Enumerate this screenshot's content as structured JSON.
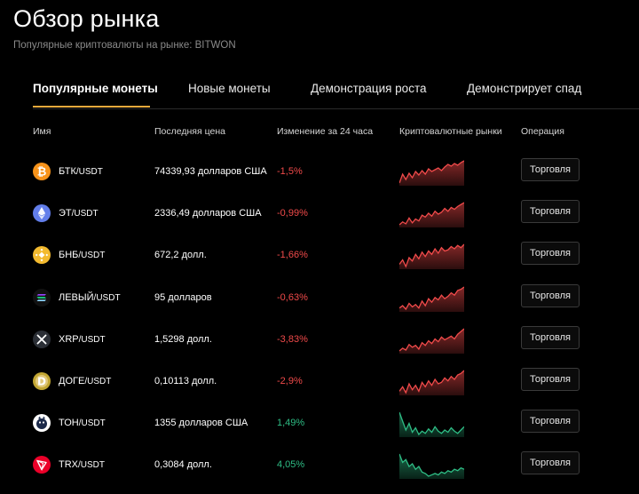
{
  "header": {
    "title": "Обзор рынка",
    "subtitle": "Популярные криптовалюты на рынке: BITWON"
  },
  "tabs": [
    {
      "label": "Популярные монеты",
      "active": true
    },
    {
      "label": "Новые монеты",
      "active": false
    },
    {
      "label": "Демонстрация роста",
      "active": false
    },
    {
      "label": "Демонстрирует спад",
      "active": false
    }
  ],
  "columns": {
    "name": "Имя",
    "price": "Последняя цена",
    "change": "Изменение за 24 часа",
    "chart": "Криптовалютные рынки",
    "action": "Операция"
  },
  "colors": {
    "accent": "#e8a93c",
    "negative": "#f04a4a",
    "positive": "#2ebd85"
  },
  "rows": [
    {
      "icon": "bitcoin-icon",
      "base": "БТК",
      "quote": "/USDT",
      "price": "74339,93 долларов США",
      "change": "-1,5%",
      "trend": "neg",
      "button": "Торговля",
      "spark": [
        20,
        30,
        24,
        31,
        26,
        33,
        29,
        34,
        30,
        36,
        33,
        35,
        37,
        34,
        38,
        41,
        39,
        42,
        40,
        43,
        45
      ]
    },
    {
      "icon": "ethereum-icon",
      "base": "ЭТ",
      "quote": "/USDT",
      "price": "2336,49 долларов США",
      "change": "-0,99%",
      "trend": "neg",
      "button": "Торговля",
      "spark": [
        21,
        24,
        22,
        28,
        23,
        27,
        25,
        31,
        29,
        33,
        30,
        35,
        32,
        34,
        38,
        35,
        39,
        37,
        40,
        42,
        44
      ]
    },
    {
      "icon": "bnb-icon",
      "base": "БНБ",
      "quote": "/USDT",
      "price": "672,2 долл.",
      "change": "-1,66%",
      "trend": "neg",
      "button": "Торговля",
      "spark": [
        24,
        28,
        22,
        30,
        27,
        33,
        29,
        35,
        31,
        36,
        33,
        38,
        34,
        39,
        36,
        37,
        40,
        38,
        41,
        39,
        42
      ]
    },
    {
      "icon": "solana-icon",
      "base": "ЛЕВЫЙ",
      "quote": "/USDT",
      "price": "95 долларов",
      "change": "-0,63%",
      "trend": "neg",
      "button": "Торговля",
      "spark": [
        22,
        24,
        21,
        26,
        23,
        25,
        22,
        28,
        24,
        30,
        27,
        31,
        29,
        33,
        30,
        32,
        35,
        33,
        37,
        38,
        40
      ]
    },
    {
      "icon": "xrp-icon",
      "base": "XRP",
      "quote": "/USDT",
      "price": "1,5298 долл.",
      "change": "-3,83%",
      "trend": "neg",
      "button": "Торговля",
      "spark": [
        20,
        23,
        21,
        27,
        24,
        26,
        22,
        29,
        26,
        31,
        28,
        33,
        30,
        35,
        32,
        34,
        36,
        33,
        38,
        41,
        44
      ]
    },
    {
      "icon": "dogecoin-icon",
      "base": "ДОГЕ",
      "quote": "/USDT",
      "price": "0,10113 долл.",
      "change": "-2,9%",
      "trend": "neg",
      "button": "Торговля",
      "spark": [
        25,
        28,
        24,
        30,
        26,
        29,
        25,
        31,
        28,
        32,
        29,
        33,
        30,
        31,
        34,
        32,
        35,
        33,
        36,
        37,
        39
      ]
    },
    {
      "icon": "toncoin-icon",
      "base": "ТОН",
      "quote": "/USDT",
      "price": "1355 долларов США",
      "change": "1,49%",
      "trend": "pos",
      "button": "Торговля",
      "spark": [
        40,
        32,
        24,
        30,
        22,
        26,
        20,
        23,
        21,
        25,
        22,
        27,
        23,
        21,
        24,
        22,
        26,
        23,
        21,
        24,
        27
      ]
    },
    {
      "icon": "tron-icon",
      "base": "TRX",
      "quote": "/USDT",
      "price": "0,3084 долл.",
      "change": "4,05%",
      "trend": "pos",
      "button": "Торговля",
      "spark": [
        38,
        32,
        34,
        29,
        31,
        27,
        29,
        25,
        24,
        22,
        23,
        24,
        23,
        25,
        24,
        26,
        25,
        27,
        26,
        28,
        27
      ]
    }
  ]
}
